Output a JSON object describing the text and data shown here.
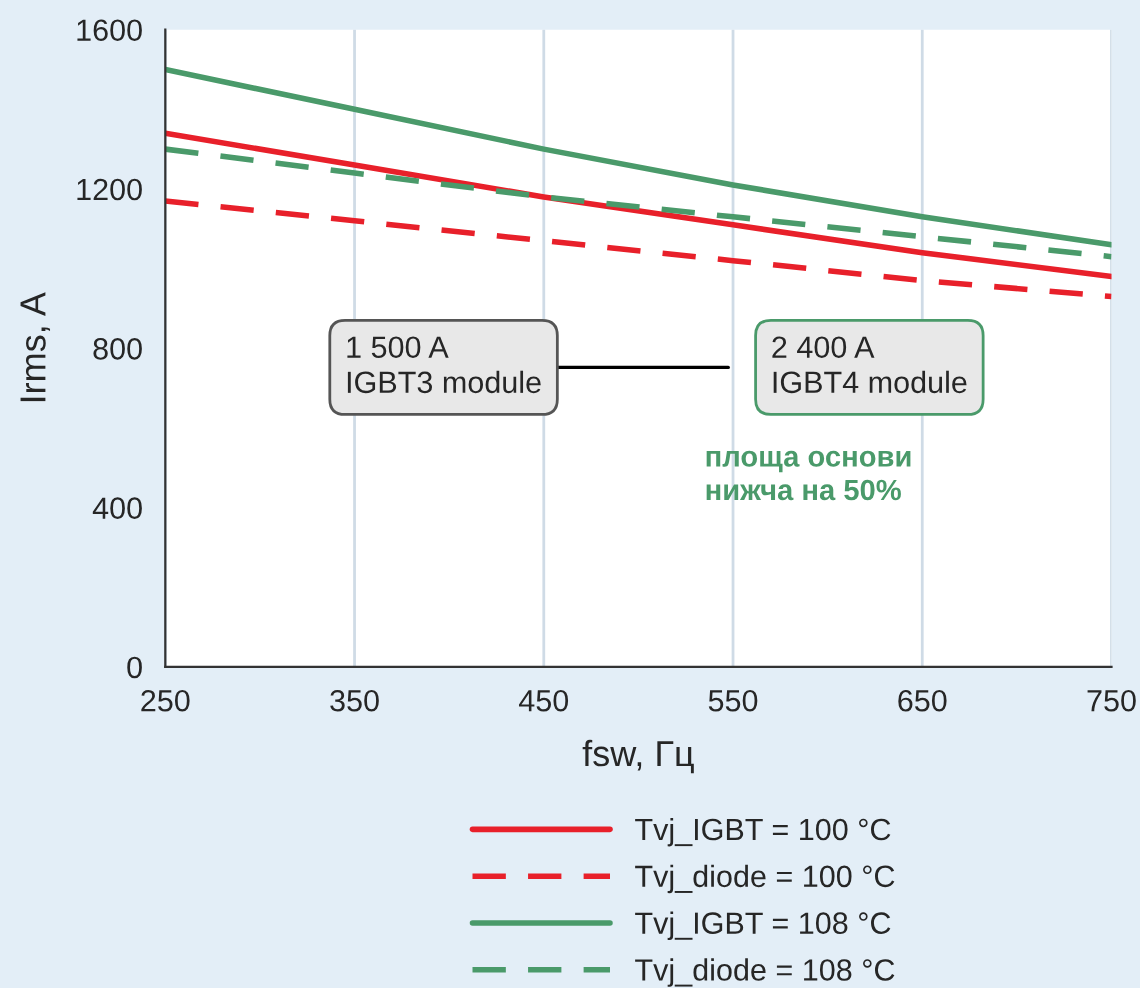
{
  "chart_data": {
    "type": "line",
    "xlabel": "fsw, Гц",
    "ylabel": "Irms, A",
    "x": [
      250,
      350,
      450,
      550,
      650,
      750
    ],
    "series": [
      {
        "name": "Tvj_IGBT = 100 °C",
        "color": "#e8202a",
        "line_style": "solid",
        "values": [
          1340,
          1260,
          1180,
          1110,
          1040,
          980
        ]
      },
      {
        "name": "Tvj_diode = 100 °C",
        "color": "#e8202a",
        "line_style": "dashed",
        "values": [
          1170,
          1120,
          1070,
          1020,
          970,
          930
        ]
      },
      {
        "name": "Tvj_IGBT = 108 °C",
        "color": "#4a9a6a",
        "line_style": "solid",
        "values": [
          1500,
          1400,
          1300,
          1210,
          1130,
          1060
        ]
      },
      {
        "name": "Tvj_diode = 108 °C",
        "color": "#4a9a6a",
        "line_style": "dashed",
        "values": [
          1300,
          1240,
          1180,
          1130,
          1080,
          1030
        ]
      }
    ],
    "xlim": [
      250,
      750
    ],
    "xticks": [
      250,
      350,
      450,
      550,
      650,
      750
    ],
    "ylim": [
      0,
      1600
    ],
    "yticks": [
      0,
      400,
      800,
      1200,
      1600
    ],
    "grid": "x",
    "legend": "bottom",
    "marker": "none",
    "annotations": [
      "1 500 A\nIGBT3 module",
      "2 400 A\nIGBT4 module",
      "площа основи\nнижча на 50%"
    ]
  }
}
